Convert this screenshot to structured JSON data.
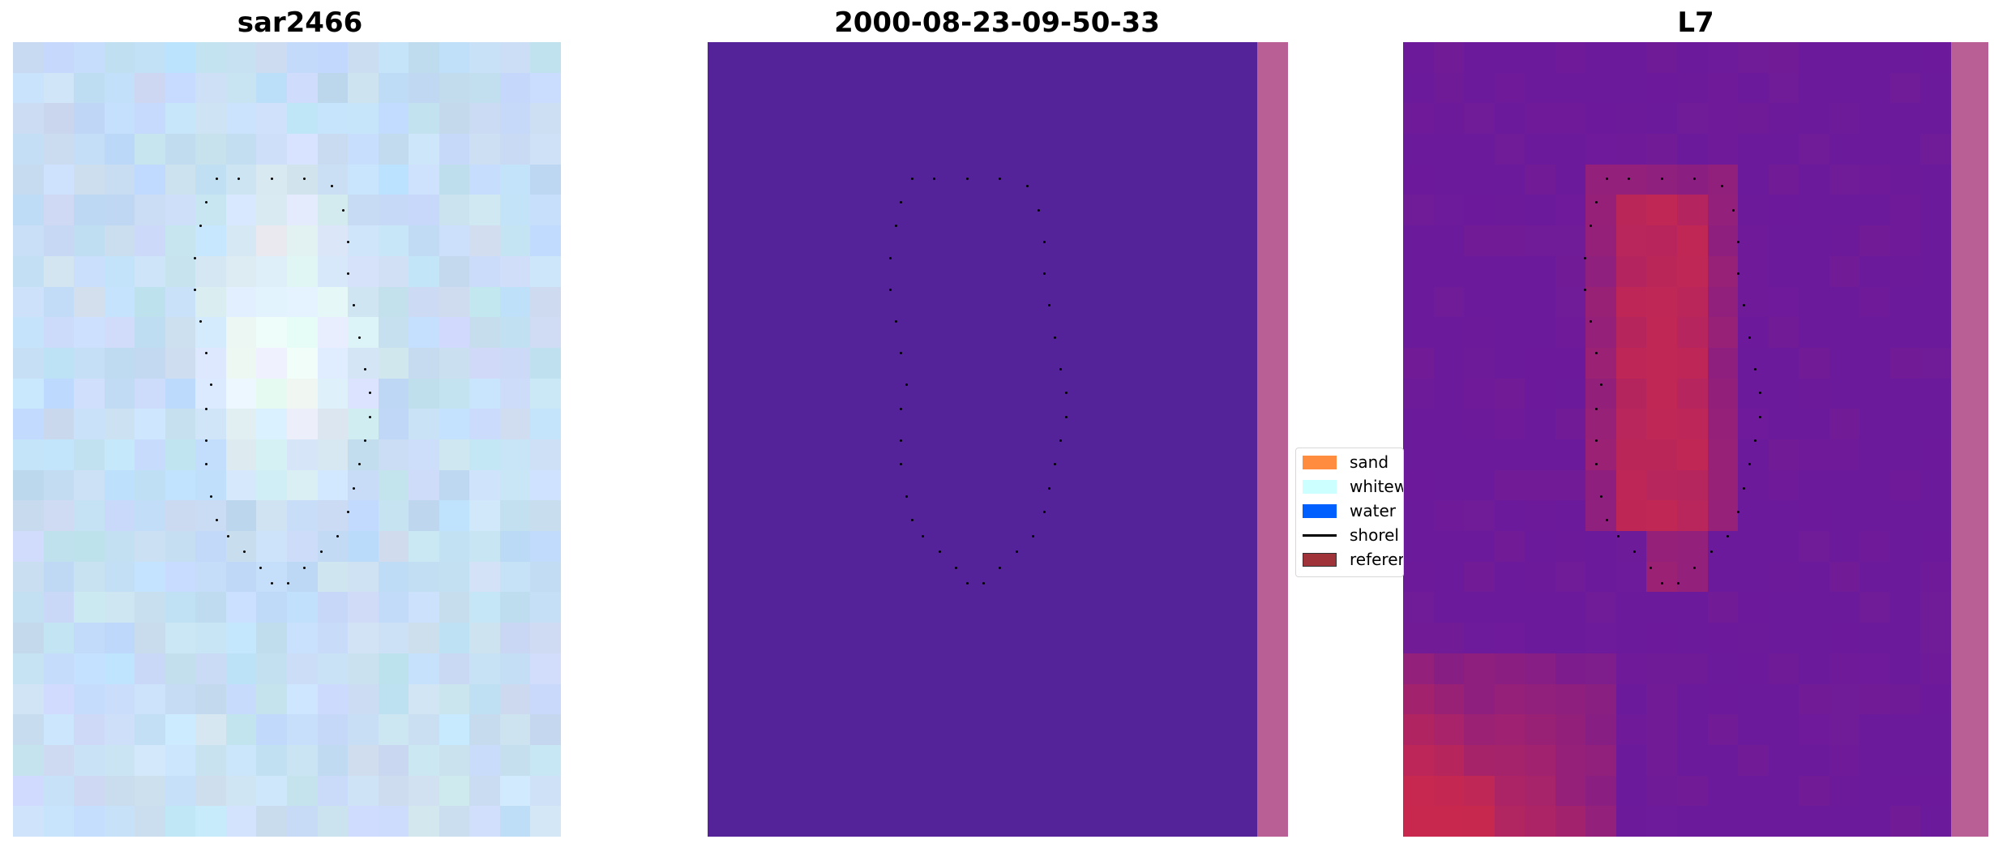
{
  "panels": [
    {
      "title": "sar2466",
      "kind": "rgb-image"
    },
    {
      "title": "2000-08-23-09-50-33",
      "kind": "classified-image"
    },
    {
      "title": "L7",
      "kind": "index-image"
    }
  ],
  "legend": {
    "items": [
      {
        "label": "sand",
        "color": "#ff8c3f",
        "type": "patch"
      },
      {
        "label": "whitew",
        "color": "#ccffff",
        "type": "patch"
      },
      {
        "label": "water",
        "color": "#0060ff",
        "type": "patch"
      },
      {
        "label": "shorel",
        "color": "#000000",
        "type": "line"
      },
      {
        "label": "referer",
        "color": "#a0323a",
        "type": "patch"
      }
    ]
  },
  "colors": {
    "panel1_base": "#c2dcf5",
    "panel1_center": "#eef8fb",
    "panel2_background": "#54239a",
    "panel2_strip": "#b95f95",
    "panel3_base": "#6b1a9c",
    "panel3_hot": "#c8284e",
    "panel3_strip": "#b95f95"
  }
}
